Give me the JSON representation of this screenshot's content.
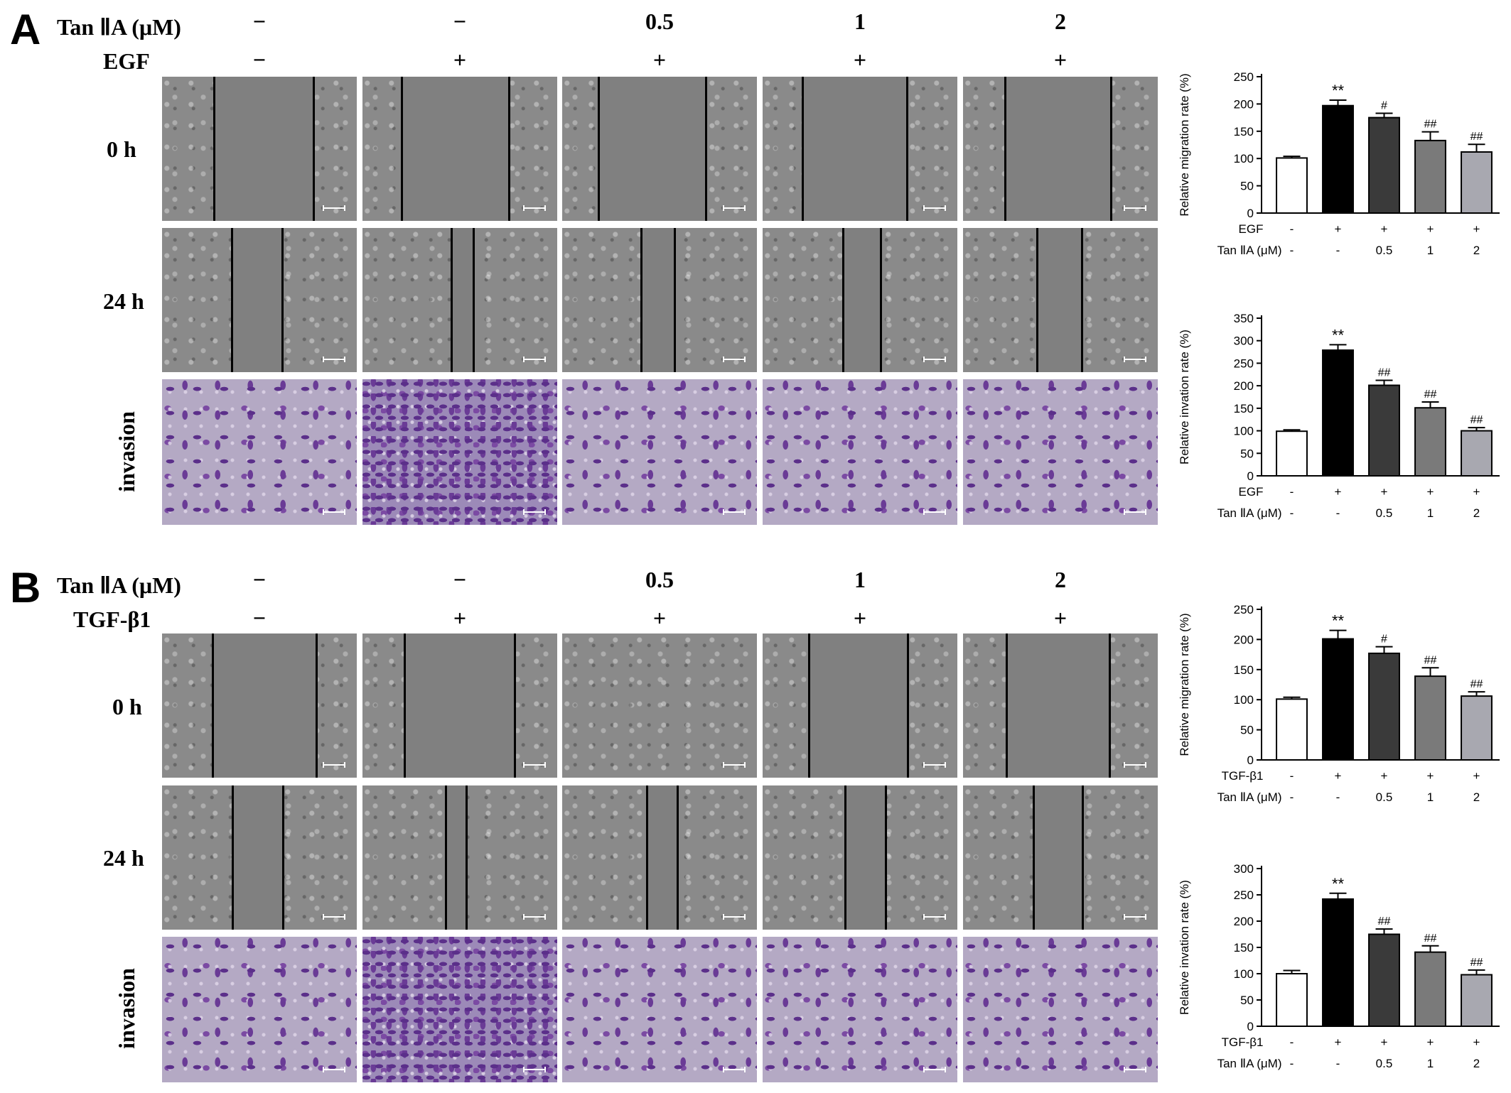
{
  "panels": [
    {
      "letter": "A",
      "tan_label": "Tan ⅡA (μM)",
      "stim_label": "EGF",
      "tan_values": [
        "−",
        "−",
        "0.5",
        "1",
        "2"
      ],
      "stim_values": [
        "−",
        "+",
        "+",
        "+",
        "+"
      ],
      "row_labels": [
        "0 h",
        "24 h",
        "invasion"
      ]
    },
    {
      "letter": "B",
      "tan_label": "Tan ⅡA (μM)",
      "stim_label": "TGF-β1",
      "tan_values": [
        "−",
        "−",
        "0.5",
        "1",
        "2"
      ],
      "stim_values": [
        "−",
        "+",
        "+",
        "+",
        "+"
      ],
      "row_labels": [
        "0 h",
        "24 h",
        "invasion"
      ]
    }
  ],
  "chart_data": [
    {
      "type": "bar",
      "ylabel": "Relative migration rate (%)",
      "ylim": [
        0,
        250
      ],
      "yticks": [
        0,
        50,
        100,
        150,
        200,
        250
      ],
      "values": [
        101,
        197,
        175,
        133,
        112
      ],
      "errors": [
        3,
        10,
        8,
        16,
        14
      ],
      "annotations": [
        "",
        "**",
        "#",
        "##",
        "##"
      ],
      "bar_colors": [
        "#ffffff",
        "#000000",
        "#3a3a3a",
        "#7a7a7a",
        "#a8a8b0"
      ],
      "row1_label": "EGF",
      "row1_values": [
        "-",
        "+",
        "+",
        "+",
        "+"
      ],
      "row2_label": "Tan ⅡA (μM)",
      "row2_values": [
        "-",
        "-",
        "0.5",
        "1",
        "2"
      ]
    },
    {
      "type": "bar",
      "ylabel": "Relative invation rate (%)",
      "ylim": [
        0,
        350
      ],
      "yticks": [
        0,
        50,
        100,
        150,
        200,
        250,
        300,
        350
      ],
      "values": [
        99,
        279,
        201,
        151,
        100
      ],
      "errors": [
        3,
        12,
        11,
        13,
        7
      ],
      "annotations": [
        "",
        "**",
        "##",
        "##",
        "##"
      ],
      "bar_colors": [
        "#ffffff",
        "#000000",
        "#3a3a3a",
        "#7a7a7a",
        "#a8a8b0"
      ],
      "row1_label": "EGF",
      "row1_values": [
        "-",
        "+",
        "+",
        "+",
        "+"
      ],
      "row2_label": "Tan ⅡA (μM)",
      "row2_values": [
        "-",
        "-",
        "0.5",
        "1",
        "2"
      ]
    },
    {
      "type": "bar",
      "ylabel": "Relative migration rate (%)",
      "ylim": [
        0,
        250
      ],
      "yticks": [
        0,
        50,
        100,
        150,
        200,
        250
      ],
      "values": [
        101,
        201,
        177,
        139,
        106
      ],
      "errors": [
        3,
        14,
        11,
        14,
        7
      ],
      "annotations": [
        "",
        "**",
        "#",
        "##",
        "##"
      ],
      "bar_colors": [
        "#ffffff",
        "#000000",
        "#3a3a3a",
        "#7a7a7a",
        "#a8a8b0"
      ],
      "row1_label": "TGF-β1",
      "row1_values": [
        "-",
        "+",
        "+",
        "+",
        "+"
      ],
      "row2_label": "Tan ⅡA (μM)",
      "row2_values": [
        "-",
        "-",
        "0.5",
        "1",
        "2"
      ]
    },
    {
      "type": "bar",
      "ylabel": "Relative invation rate (%)",
      "ylim": [
        0,
        300
      ],
      "yticks": [
        0,
        50,
        100,
        150,
        200,
        250,
        300
      ],
      "values": [
        100,
        242,
        175,
        141,
        98
      ],
      "errors": [
        6,
        11,
        10,
        12,
        9
      ],
      "annotations": [
        "",
        "**",
        "##",
        "##",
        "##"
      ],
      "bar_colors": [
        "#ffffff",
        "#000000",
        "#3a3a3a",
        "#7a7a7a",
        "#a8a8b0"
      ],
      "row1_label": "TGF-β1",
      "row1_values": [
        "-",
        "+",
        "+",
        "+",
        "+"
      ],
      "row2_label": "Tan ⅡA (μM)",
      "row2_values": [
        "-",
        "-",
        "0.5",
        "1",
        "2"
      ]
    }
  ]
}
